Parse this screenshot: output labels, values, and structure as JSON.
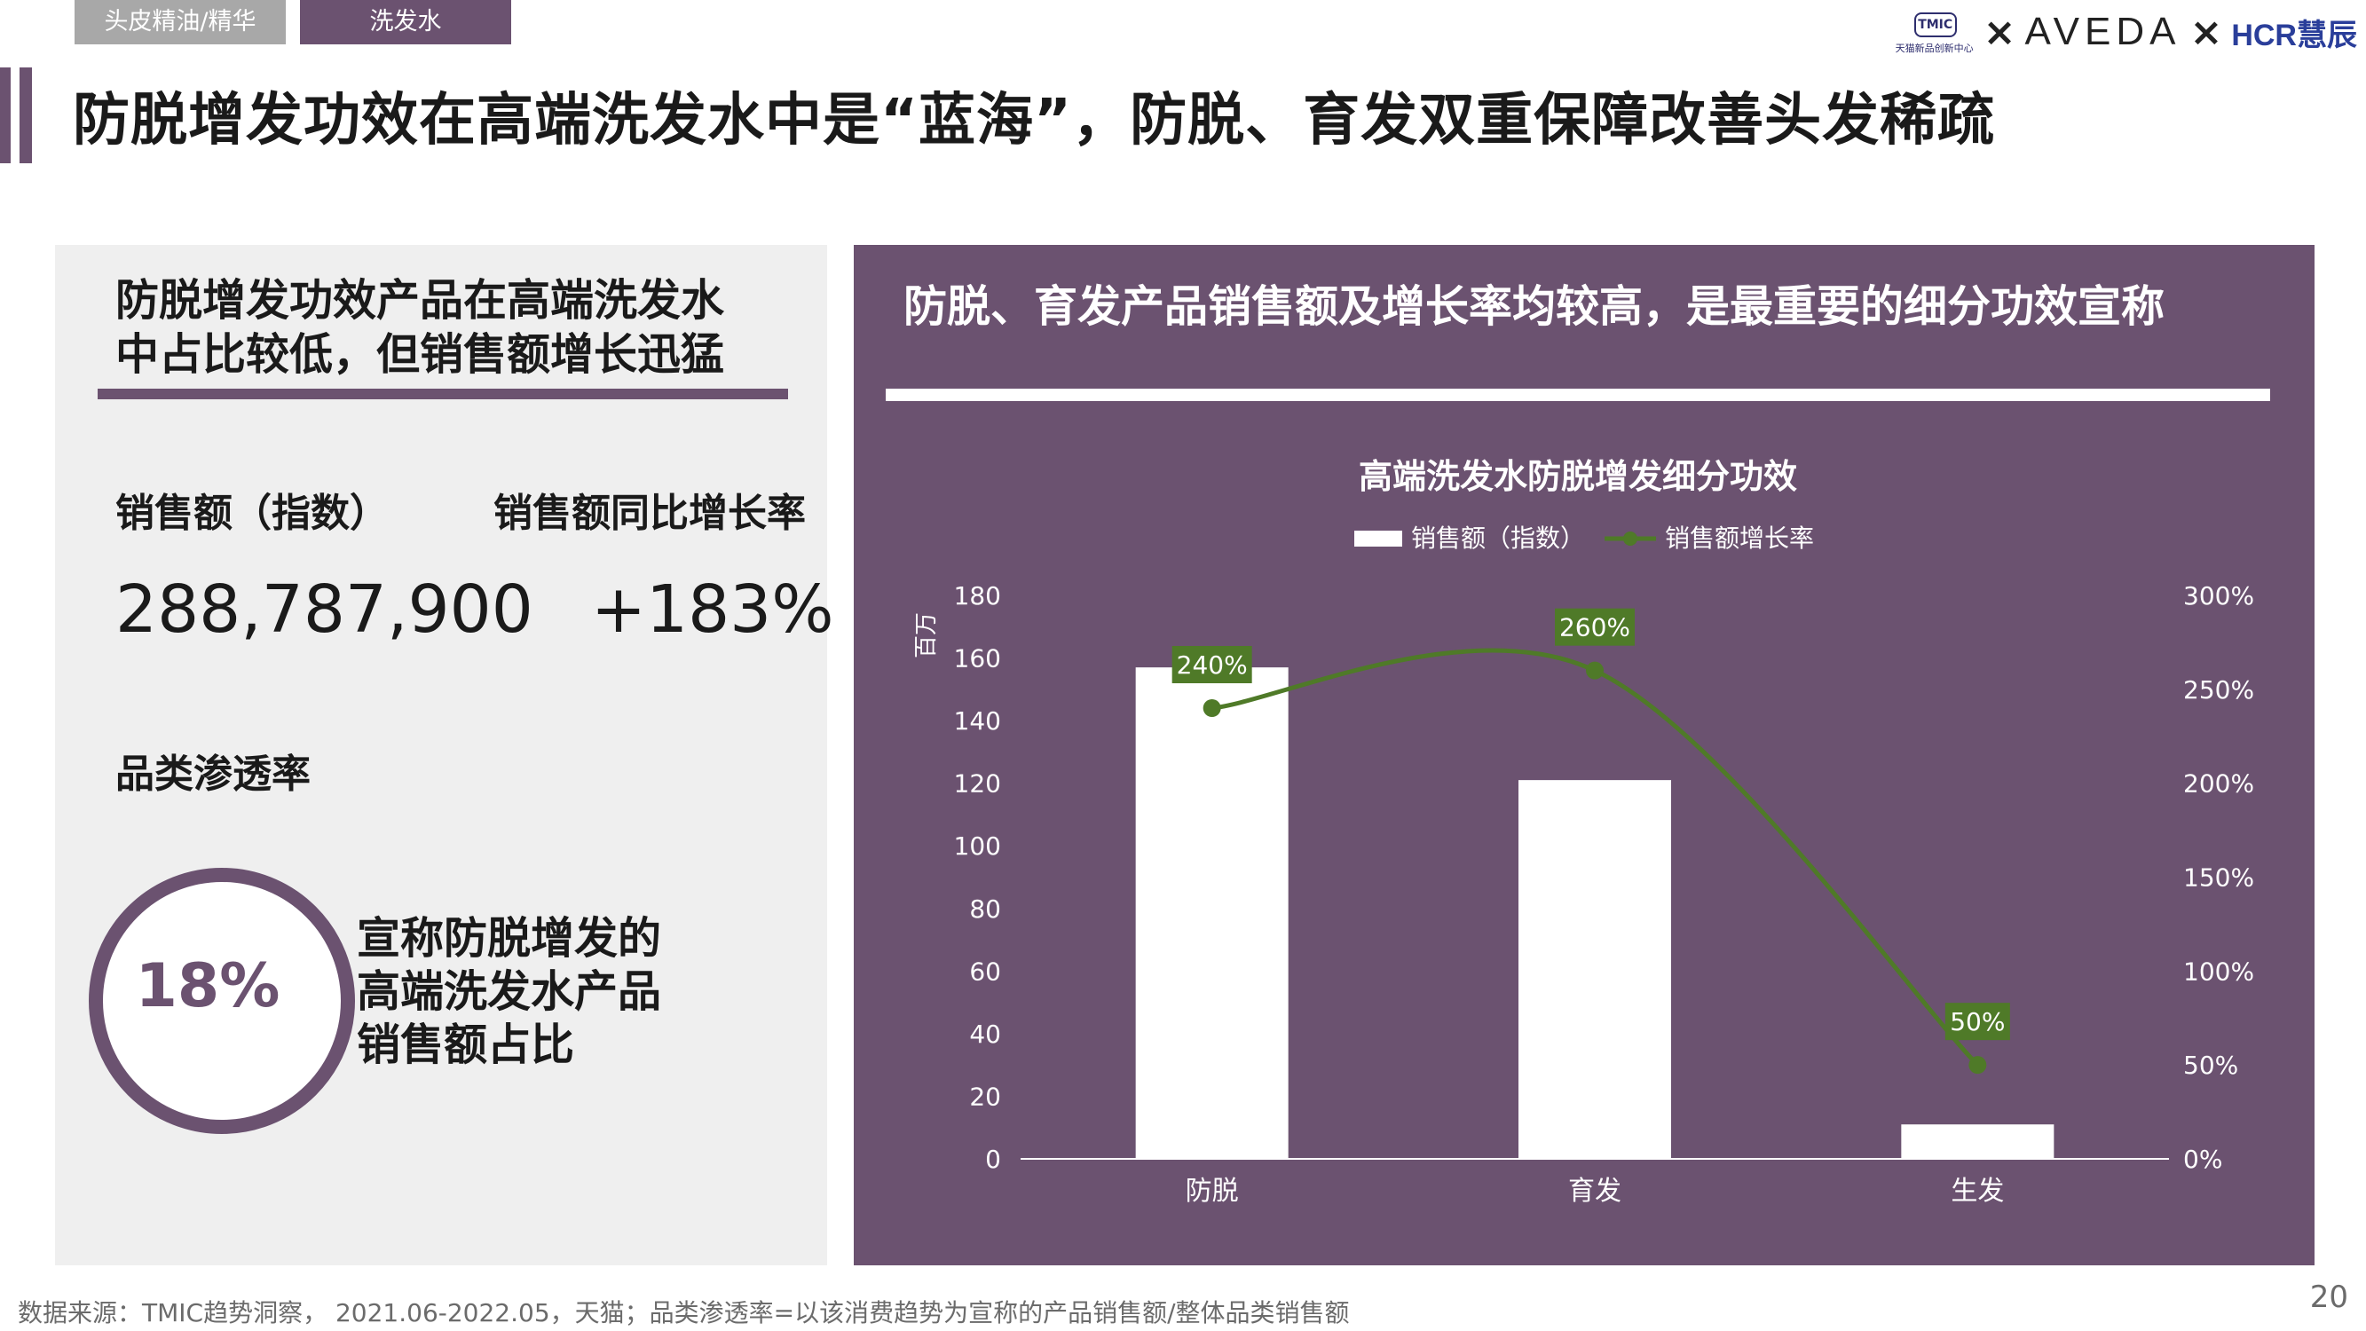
{
  "tabs": [
    {
      "label": "头皮精油/精华"
    },
    {
      "label": "洗发水"
    }
  ],
  "logos": {
    "tmic_mark": "TMIC",
    "tmic_sub": "天猫新品创新中心",
    "times": "×",
    "aveda": "AVEDA",
    "hcr": "HCR慧辰"
  },
  "page_title": "防脱增发功效在高端洗发水中是“蓝海”，防脱、育发双重保障改善头发稀疏",
  "left": {
    "heading": "防脱增发功效产品在高端洗发水\n中占比较低，但销售额增长迅猛",
    "sales_label": "销售额（指数）",
    "growth_label": "销售额同比增长率",
    "sales_value": "288,787,900",
    "growth_value": "+183%",
    "penetration_label": "品类渗透率",
    "penetration_value": "18%",
    "penetration_desc": "宣称防脱增发的\n高端洗发水产品\n销售额占比"
  },
  "right": {
    "heading": "防脱、育发产品销售额及增长率均较高，是最重要的细分功效宣称"
  },
  "chart_data": {
    "type": "bar",
    "title": "高端洗发水防脱增发细分功效",
    "categories": [
      "防脱",
      "育发",
      "生发"
    ],
    "series": [
      {
        "name": "销售额（指数）",
        "type": "bar",
        "axis": "left",
        "values": [
          157,
          121,
          11
        ],
        "color": "#ffffff"
      },
      {
        "name": "销售额增长率",
        "type": "line",
        "axis": "right",
        "values": [
          240,
          260,
          50
        ],
        "labels": [
          "240%",
          "260%",
          "50%"
        ],
        "color": "#4f7a28"
      }
    ],
    "ylabel_left": "百万",
    "ylim_left": [
      0,
      180
    ],
    "yticks_left": [
      "0",
      "20",
      "40",
      "60",
      "80",
      "100",
      "120",
      "140",
      "160",
      "180"
    ],
    "ylim_right": [
      0,
      300
    ],
    "yticks_right": [
      "0%",
      "50%",
      "100%",
      "150%",
      "200%",
      "250%",
      "300%"
    ],
    "legend_position": "top-center",
    "grid": false
  },
  "footer": {
    "source": "数据来源：TMIC趋势洞察， 2021.06-2022.05，天猫；品类渗透率=以该消费趋势为宣称的产品销售额/整体品类销售额",
    "page_number": "20"
  }
}
